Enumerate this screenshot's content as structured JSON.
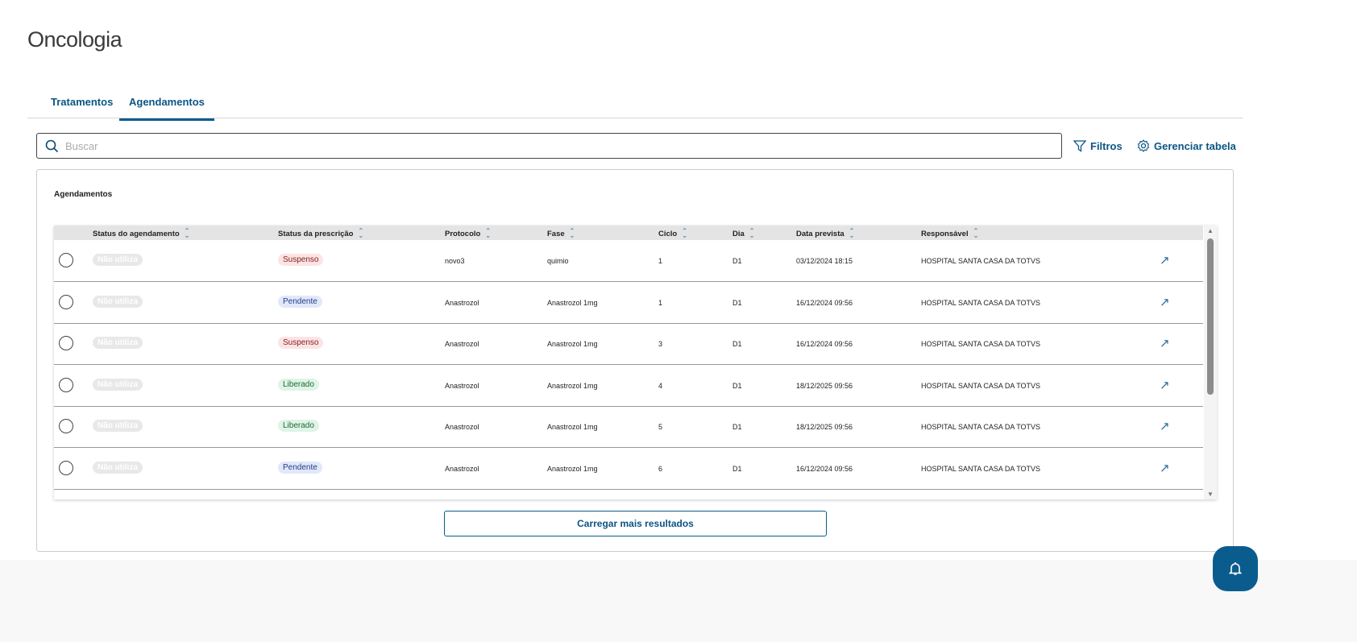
{
  "page": {
    "title": "Oncologia"
  },
  "tabs": [
    {
      "label": "Tratamentos",
      "active": false
    },
    {
      "label": "Agendamentos",
      "active": true
    }
  ],
  "search": {
    "placeholder": "Buscar",
    "value": ""
  },
  "toolbar": {
    "filters": "Filtros",
    "manage_table": "Gerenciar tabela"
  },
  "card": {
    "title": "Agendamentos"
  },
  "table": {
    "columns": [
      "Status do agendamento",
      "Status da prescrição",
      "Protocolo",
      "Fase",
      "Ciclo",
      "Dia",
      "Data prevista",
      "Responsável"
    ],
    "rows": [
      {
        "status_agendamento": "Não utiliza",
        "status_prescricao": "Suspenso",
        "protocolo": "novo3",
        "fase": "quimio",
        "ciclo": "1",
        "dia": "D1",
        "data": "03/12/2024 18:15",
        "responsavel": "HOSPITAL SANTA CASA DA TOTVS"
      },
      {
        "status_agendamento": "Não utiliza",
        "status_prescricao": "Pendente",
        "protocolo": "Anastrozol",
        "fase": "Anastrozol 1mg",
        "ciclo": "1",
        "dia": "D1",
        "data": "16/12/2024 09:56",
        "responsavel": "HOSPITAL SANTA CASA DA TOTVS"
      },
      {
        "status_agendamento": "Não utiliza",
        "status_prescricao": "Suspenso",
        "protocolo": "Anastrozol",
        "fase": "Anastrozol 1mg",
        "ciclo": "3",
        "dia": "D1",
        "data": "16/12/2024 09:56",
        "responsavel": "HOSPITAL SANTA CASA DA TOTVS"
      },
      {
        "status_agendamento": "Não utiliza",
        "status_prescricao": "Liberado",
        "protocolo": "Anastrozol",
        "fase": "Anastrozol 1mg",
        "ciclo": "4",
        "dia": "D1",
        "data": "18/12/2025 09:56",
        "responsavel": "HOSPITAL SANTA CASA DA TOTVS"
      },
      {
        "status_agendamento": "Não utiliza",
        "status_prescricao": "Liberado",
        "protocolo": "Anastrozol",
        "fase": "Anastrozol 1mg",
        "ciclo": "5",
        "dia": "D1",
        "data": "18/12/2025 09:56",
        "responsavel": "HOSPITAL SANTA CASA DA TOTVS"
      },
      {
        "status_agendamento": "Não utiliza",
        "status_prescricao": "Pendente",
        "protocolo": "Anastrozol",
        "fase": "Anastrozol 1mg",
        "ciclo": "6",
        "dia": "D1",
        "data": "16/12/2024 09:56",
        "responsavel": "HOSPITAL SANTA CASA DA TOTVS"
      }
    ]
  },
  "load_more": "Carregar mais resultados",
  "icons": {
    "search": "search-icon",
    "filter": "filter-icon",
    "gear": "gear-icon",
    "open": "arrow-up-right-icon",
    "bell": "bell-icon"
  },
  "colors": {
    "accent": "#0b5c8e"
  }
}
